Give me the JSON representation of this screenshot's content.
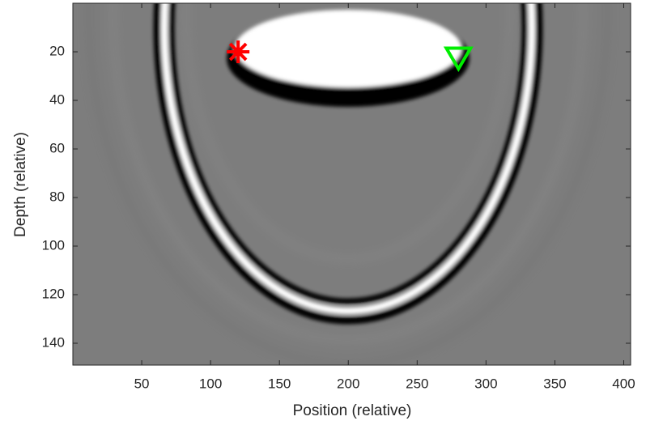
{
  "chart_data": {
    "type": "image",
    "xlabel": "Position (relative)",
    "ylabel": "Depth (relative)",
    "xlim": [
      0,
      405
    ],
    "ylim": [
      0,
      149
    ],
    "y_reversed": true,
    "xticks": [
      50,
      100,
      150,
      200,
      250,
      300,
      350,
      400
    ],
    "yticks": [
      20,
      40,
      60,
      80,
      100,
      120,
      140
    ],
    "points": [
      {
        "x": 120,
        "y": 20,
        "marker": "star",
        "color": "#ff0000"
      },
      {
        "x": 280,
        "y": 22,
        "marker": "triangle-down",
        "color": "#00ee00"
      }
    ]
  }
}
